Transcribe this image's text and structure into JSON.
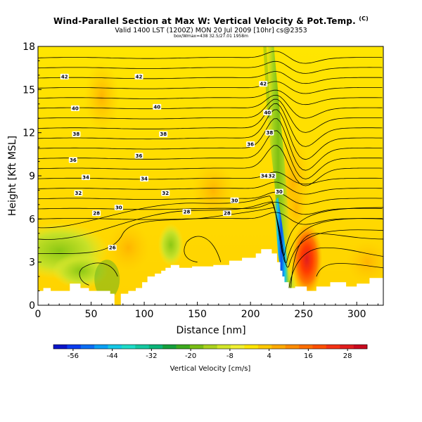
{
  "chart_data": {
    "type": "heatmap",
    "title": "Wind-Parallel Section at Max W: Vertical Velocity & Pot.Temp.",
    "title_mark": "(C)",
    "subtitle": "Valid 1400 LST (1200Z) MON 20 Jul 2009 [10hr] cs@2353",
    "subtitle2": "box/Wmax=438 32.5/27.01 1958m",
    "xlabel": "Distance [nm]",
    "ylabel": "Height [Kft MSL]",
    "xlim": [
      0,
      325
    ],
    "ylim": [
      0,
      18
    ],
    "x_ticks": [
      "0",
      "50",
      "100",
      "150",
      "200",
      "250",
      "300"
    ],
    "y_ticks": [
      "0",
      "3",
      "6",
      "9",
      "12",
      "15",
      "18"
    ],
    "colorbar": {
      "label": "Vertical Velocity [cm/s]",
      "ticks": [
        "-56",
        "-44",
        "-32",
        "-20",
        "-8",
        "4",
        "16",
        "28"
      ],
      "range": [
        -62,
        34
      ],
      "colors": [
        "#0a14c8",
        "#0a3cf0",
        "#0a6ef5",
        "#0aa0f5",
        "#14c8e6",
        "#1edcc8",
        "#14c8a0",
        "#0ab478",
        "#14a03c",
        "#3caa1e",
        "#78be14",
        "#aad21e",
        "#d2e628",
        "#f0f032",
        "#ffe600",
        "#ffc800",
        "#ffaa00",
        "#ff8c00",
        "#ff6e00",
        "#ff5000",
        "#f53214",
        "#e11e1e",
        "#c80a1e"
      ]
    },
    "theta_contour_labels": [
      "42",
      "42",
      "42",
      "40",
      "40",
      "40",
      "38",
      "38",
      "38",
      "36",
      "36",
      "36",
      "34",
      "34",
      "34",
      "32",
      "32",
      "32",
      "30",
      "30",
      "30",
      "28",
      "28",
      "28",
      "26"
    ]
  }
}
